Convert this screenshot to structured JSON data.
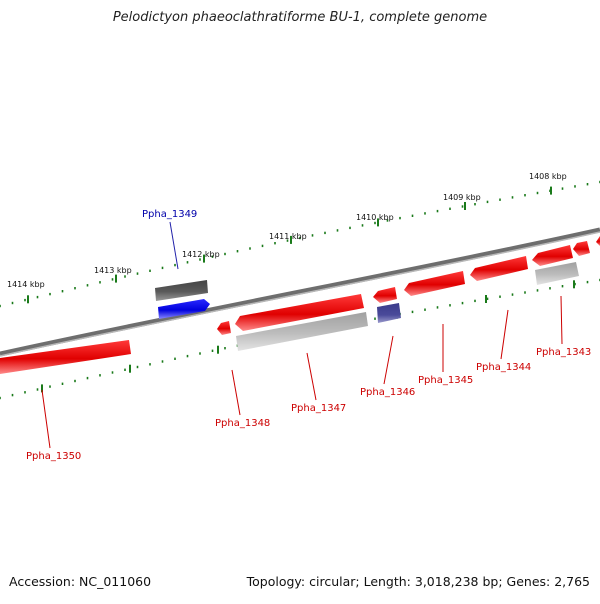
{
  "title": "Pelodictyon phaeoclathratiforme BU-1, complete genome",
  "footer": {
    "accession": "Accession: NC_011060",
    "summary": "Topology: circular; Length: 3,018,238 bp; Genes: 2,765"
  },
  "colors": {
    "backbone": "#8a8a8a",
    "tick": "#1a7a1a",
    "gene_red": "#ee1111",
    "gene_gray": "#b5b5b5",
    "gene_blue": "#1111ee",
    "gene_navy": "#4a4aa0",
    "gene_darkgray": "#666666",
    "label_red": "#cc0000",
    "label_blue": "#0000aa"
  },
  "scale_labels": [
    "1414 kbp",
    "1413 kbp",
    "1412 kbp",
    "1411 kbp",
    "1410 kbp",
    "1409 kbp",
    "1408 kbp"
  ],
  "gene_labels": [
    {
      "id": "Ppha_1349",
      "color": "blue"
    },
    {
      "id": "Ppha_1350",
      "color": "red"
    },
    {
      "id": "Ppha_1348",
      "color": "red"
    },
    {
      "id": "Ppha_1347",
      "color": "red"
    },
    {
      "id": "Ppha_1346",
      "color": "red"
    },
    {
      "id": "Ppha_1345",
      "color": "red"
    },
    {
      "id": "Ppha_1344",
      "color": "red"
    },
    {
      "id": "Ppha_1343",
      "color": "red"
    }
  ]
}
